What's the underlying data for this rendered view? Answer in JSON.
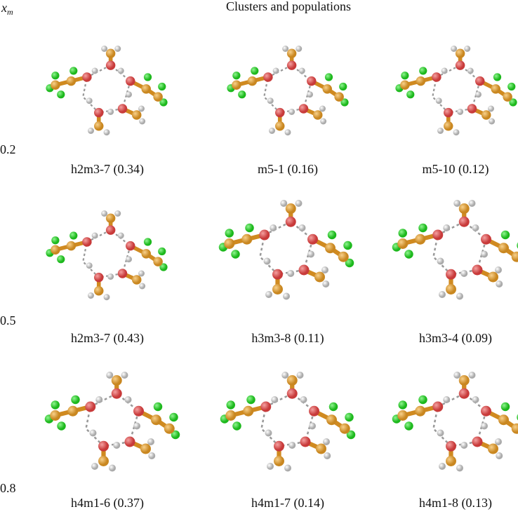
{
  "header": {
    "axis_label": {
      "symbol": "x",
      "subscript": "m"
    },
    "title": "Clusters and populations"
  },
  "rows": [
    {
      "x_m": 0.2,
      "clusters": [
        {
          "label": "h2m3-7 (0.34)"
        },
        {
          "label": "m5-1 (0.16)"
        },
        {
          "label": "m5-10 (0.12)"
        }
      ]
    },
    {
      "x_m": 0.5,
      "clusters": [
        {
          "label": "h2m3-7 (0.43)"
        },
        {
          "label": "h3m3-8 (0.11)"
        },
        {
          "label": "h3m3-4 (0.09)"
        }
      ]
    },
    {
      "x_m": 0.8,
      "clusters": [
        {
          "label": "h4m1-6 (0.37)"
        },
        {
          "label": "h4m1-7 (0.14)"
        },
        {
          "label": "h4m1-8 (0.13)"
        }
      ]
    }
  ]
}
